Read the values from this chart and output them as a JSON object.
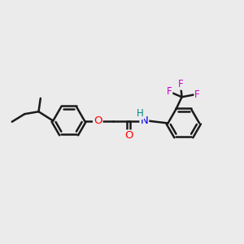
{
  "background_color": "#ebebeb",
  "bond_color": "#1a1a1a",
  "bond_width": 1.8,
  "figsize": [
    3.0,
    3.0
  ],
  "dpi": 100,
  "O_color": "#ff0000",
  "N_color": "#0000ee",
  "H_color": "#008888",
  "F_color": "#cc00cc",
  "xlim": [
    -5.0,
    5.0
  ],
  "ylim": [
    -2.8,
    2.8
  ]
}
